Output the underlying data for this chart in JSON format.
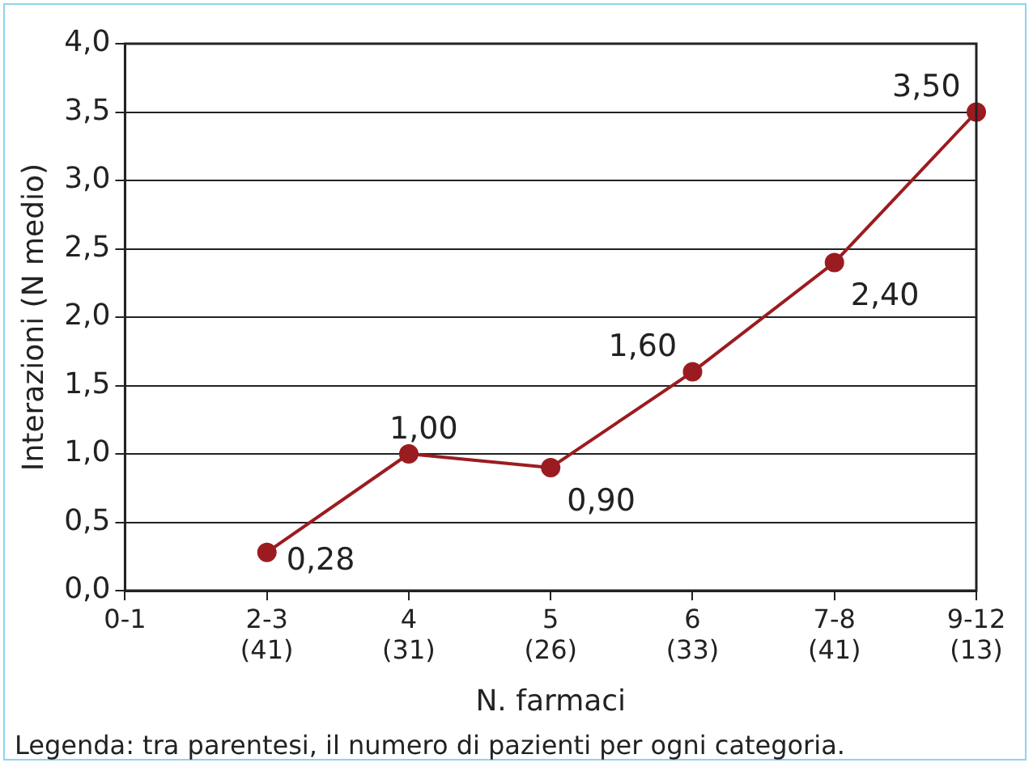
{
  "chart_data": {
    "type": "line",
    "xlabel": "N. farmaci",
    "ylabel": "Interazioni (N medio)",
    "categories": [
      "0-1",
      "2-3\n(41)",
      "4\n(31)",
      "5\n(26)",
      "6\n(33)",
      "7-8\n(41)",
      "9-12\n(13)"
    ],
    "series": [
      {
        "color": "#9b1c20",
        "values": [
          null,
          0.28,
          1.0,
          0.9,
          1.6,
          2.4,
          3.5
        ],
        "value_labels": [
          null,
          "0,28",
          "1,00",
          "0,90",
          "1,60",
          "2,40",
          "3,50"
        ]
      }
    ],
    "ylim": [
      0,
      4
    ],
    "yticks": [
      {
        "value": 0,
        "label": "0,0"
      },
      {
        "value": 0.5,
        "label": "0,5"
      },
      {
        "value": 1,
        "label": "1,0"
      },
      {
        "value": 1.5,
        "label": "1,5"
      },
      {
        "value": 2,
        "label": "2,0"
      },
      {
        "value": 2.5,
        "label": "2,5"
      },
      {
        "value": 3,
        "label": "3,0"
      },
      {
        "value": 3.5,
        "label": "3,5"
      },
      {
        "value": 4,
        "label": "4,0"
      }
    ],
    "grid": "y",
    "legend": false,
    "marker": "circle",
    "line_style": "solid",
    "annotations": [
      "Legenda: tra parentesi, il numero di pazienti per ogni categoria."
    ]
  }
}
